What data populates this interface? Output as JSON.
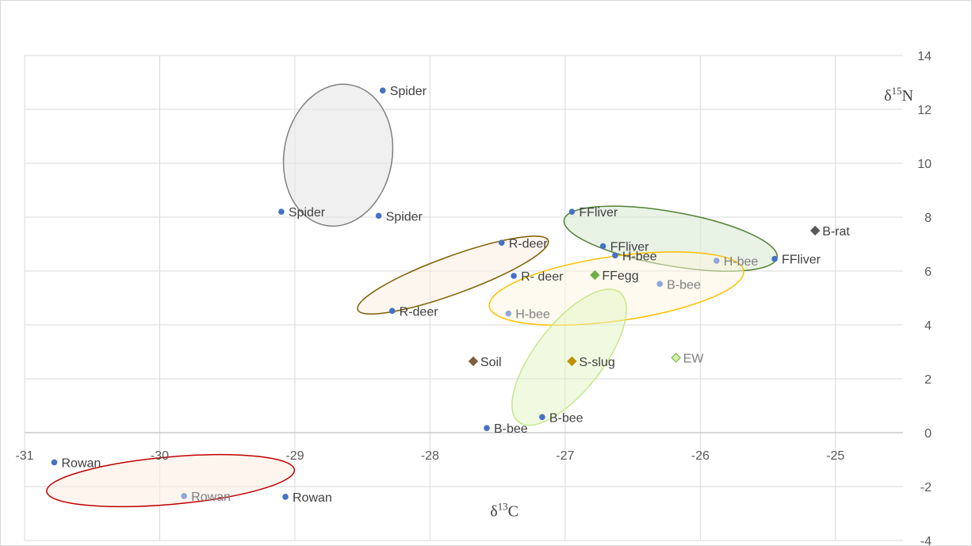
{
  "chart_data": {
    "type": "scatter",
    "xlabel": "δ¹³C",
    "ylabel": "δ¹⁵N",
    "xlim": [
      -31,
      -24.5
    ],
    "ylim": [
      -4,
      14
    ],
    "x_ticks": [
      -31,
      -30,
      -29,
      -28,
      -27,
      -26,
      -25
    ],
    "y_ticks": [
      -4,
      -2,
      0,
      2,
      4,
      6,
      8,
      10,
      12,
      14
    ],
    "grid": true,
    "points": [
      {
        "label": "Spider",
        "x": -28.35,
        "y": 12.7,
        "color": "#4472c4",
        "marker": "circle"
      },
      {
        "label": "Spider",
        "x": -29.1,
        "y": 8.2,
        "color": "#4472c4",
        "marker": "circle"
      },
      {
        "label": "Spider",
        "x": -28.38,
        "y": 8.05,
        "color": "#4472c4",
        "marker": "circle"
      },
      {
        "label": "FFliver",
        "x": -26.95,
        "y": 8.2,
        "color": "#4472c4",
        "marker": "circle"
      },
      {
        "label": "FFliver",
        "x": -26.72,
        "y": 6.92,
        "color": "#4472c4",
        "marker": "circle"
      },
      {
        "label": "FFliver",
        "x": -25.45,
        "y": 6.45,
        "color": "#4472c4",
        "marker": "circle"
      },
      {
        "label": "B-rat",
        "x": -25.15,
        "y": 7.5,
        "color": "#595959",
        "marker": "diamond"
      },
      {
        "label": "R-deer",
        "x": -27.47,
        "y": 7.05,
        "color": "#4472c4",
        "marker": "circle"
      },
      {
        "label": "R- deer",
        "x": -27.38,
        "y": 5.82,
        "color": "#4472c4",
        "marker": "circle"
      },
      {
        "label": "R-deer",
        "x": -28.28,
        "y": 4.52,
        "color": "#4472c4",
        "marker": "circle"
      },
      {
        "label": "H-bee",
        "x": -26.63,
        "y": 6.58,
        "color": "#4472c4",
        "marker": "circle"
      },
      {
        "label": "H-bee",
        "x": -25.88,
        "y": 6.38,
        "color": "#8fa8dc",
        "marker": "circle"
      },
      {
        "label": "H-bee",
        "x": -27.42,
        "y": 4.42,
        "color": "#8fa8dc",
        "marker": "circle"
      },
      {
        "label": "FFegg",
        "x": -26.78,
        "y": 5.85,
        "color": "#70ad47",
        "marker": "diamond"
      },
      {
        "label": "B-bee",
        "x": -26.3,
        "y": 5.52,
        "color": "#8fa8dc",
        "marker": "circle"
      },
      {
        "label": "B-bee",
        "x": -27.17,
        "y": 0.58,
        "color": "#4472c4",
        "marker": "circle"
      },
      {
        "label": "B-bee",
        "x": -27.58,
        "y": 0.17,
        "color": "#4472c4",
        "marker": "circle"
      },
      {
        "label": "Soil",
        "x": -27.68,
        "y": 2.65,
        "color": "#7f5f3f",
        "marker": "diamond"
      },
      {
        "label": "S-slug",
        "x": -26.95,
        "y": 2.65,
        "color": "#bf9000",
        "marker": "diamond"
      },
      {
        "label": "EW",
        "x": -26.18,
        "y": 2.78,
        "color": "#d4f0a0",
        "marker": "diamond"
      },
      {
        "label": "Rowan",
        "x": -30.78,
        "y": -1.1,
        "color": "#4472c4",
        "marker": "circle"
      },
      {
        "label": "Rowan",
        "x": -29.82,
        "y": -2.35,
        "color": "#8fa8dc",
        "marker": "circle"
      },
      {
        "label": "Rowan",
        "x": -29.07,
        "y": -2.38,
        "color": "#4472c4",
        "marker": "circle"
      }
    ],
    "groups": [
      {
        "name": "Spider",
        "cx": -28.68,
        "cy": 10.3,
        "rx": 0.4,
        "ry": 2.65,
        "rotate": 10,
        "stroke": "#7f7f7f",
        "fill": "#e6e6e6",
        "fill_opacity": 0.6
      },
      {
        "name": "FFliver",
        "cx": -26.22,
        "cy": 7.2,
        "rx": 0.8,
        "ry": 1.0,
        "rotate": 10,
        "stroke": "#548235",
        "fill": "#d9ead3",
        "fill_opacity": 0.6
      },
      {
        "name": "R-deer",
        "cx": -27.83,
        "cy": 5.85,
        "rx": 0.75,
        "ry": 0.7,
        "rotate": -20,
        "stroke": "#7f6000",
        "fill": "#fbeee0",
        "fill_opacity": 0.5
      },
      {
        "name": "H-bee",
        "cx": -26.62,
        "cy": 5.35,
        "rx": 0.95,
        "ry": 1.2,
        "rotate": -8,
        "stroke": "#ffc000",
        "fill": "#fef5e0",
        "fill_opacity": 0.5
      },
      {
        "name": "B-bee",
        "cx": -26.97,
        "cy": 2.8,
        "rx": 0.25,
        "ry": 3.05,
        "rotate": 38,
        "stroke": "#c6e88a",
        "fill": "#e2f5c4",
        "fill_opacity": 0.5
      },
      {
        "name": "Rowan",
        "cx": -29.92,
        "cy": -1.78,
        "rx": 0.92,
        "ry": 0.88,
        "rotate": -5,
        "stroke": "#c00000",
        "fill": "#fbeee2",
        "fill_opacity": 0.6
      }
    ],
    "label_colors": {
      "dark": "#404040",
      "light": "#7f7f7f"
    }
  }
}
